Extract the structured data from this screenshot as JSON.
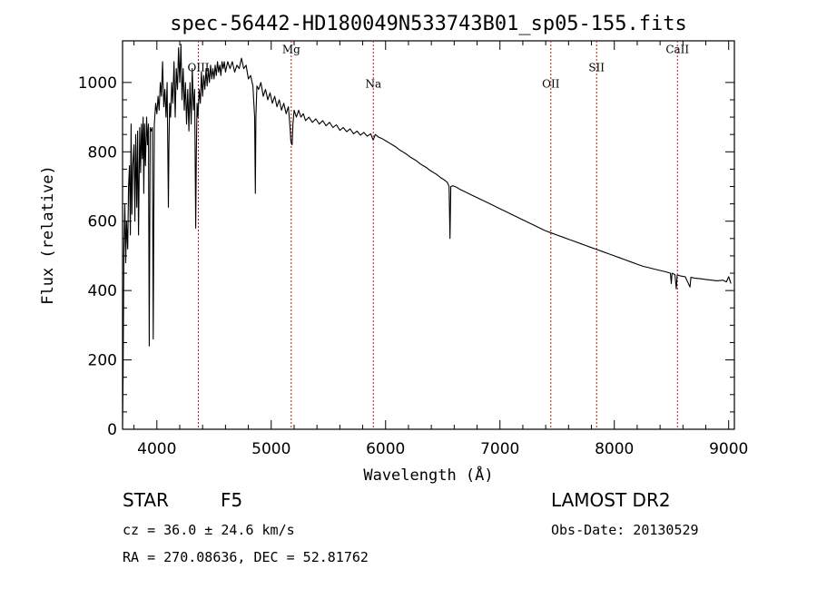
{
  "chart_data": {
    "type": "line",
    "title": "spec-56442-HD180049N533743B01_sp05-155.fits",
    "xlabel": "Wavelength (Å)",
    "ylabel": "Flux (relative)",
    "xlim": [
      3700,
      9050
    ],
    "ylim": [
      0,
      1120
    ],
    "xticks": [
      4000,
      5000,
      6000,
      7000,
      8000,
      9000
    ],
    "yticks": [
      0,
      200,
      400,
      600,
      800,
      1000
    ],
    "lines": [
      {
        "label": "OIII",
        "wavelength": 4363,
        "label_flux": 1032
      },
      {
        "label": "Mg",
        "wavelength": 5175,
        "label_flux": 1085
      },
      {
        "label": "Na",
        "wavelength": 5893,
        "label_flux": 985
      },
      {
        "label": "OII",
        "wavelength": 7445,
        "label_flux": 985
      },
      {
        "label": "SII",
        "wavelength": 7845,
        "label_flux": 1032
      },
      {
        "label": "CaII",
        "wavelength": 8552,
        "label_flux": 1085
      }
    ],
    "line_color": "#b01818",
    "series": [
      {
        "name": "spectrum",
        "color": "#000000",
        "points": [
          [
            3700,
            10
          ],
          [
            3705,
            150
          ],
          [
            3712,
            520
          ],
          [
            3720,
            650
          ],
          [
            3728,
            480
          ],
          [
            3735,
            600
          ],
          [
            3745,
            520
          ],
          [
            3752,
            700
          ],
          [
            3760,
            760
          ],
          [
            3768,
            560
          ],
          [
            3775,
            880
          ],
          [
            3782,
            620
          ],
          [
            3790,
            760
          ],
          [
            3800,
            820
          ],
          [
            3808,
            600
          ],
          [
            3815,
            850
          ],
          [
            3825,
            640
          ],
          [
            3832,
            860
          ],
          [
            3840,
            560
          ],
          [
            3850,
            870
          ],
          [
            3858,
            740
          ],
          [
            3866,
            880
          ],
          [
            3873,
            780
          ],
          [
            3880,
            900
          ],
          [
            3886,
            680
          ],
          [
            3892,
            880
          ],
          [
            3900,
            760
          ],
          [
            3910,
            900
          ],
          [
            3918,
            820
          ],
          [
            3926,
            880
          ],
          [
            3933,
            240
          ],
          [
            3938,
            600
          ],
          [
            3942,
            870
          ],
          [
            3952,
            860
          ],
          [
            3960,
            870
          ],
          [
            3968,
            260
          ],
          [
            3973,
            600
          ],
          [
            3978,
            880
          ],
          [
            3990,
            940
          ],
          [
            4000,
            910
          ],
          [
            4010,
            960
          ],
          [
            4020,
            920
          ],
          [
            4030,
            1000
          ],
          [
            4040,
            960
          ],
          [
            4050,
            1060
          ],
          [
            4060,
            930
          ],
          [
            4070,
            980
          ],
          [
            4080,
            900
          ],
          [
            4090,
            1000
          ],
          [
            4101,
            640
          ],
          [
            4106,
            820
          ],
          [
            4112,
            940
          ],
          [
            4120,
            900
          ],
          [
            4130,
            1000
          ],
          [
            4140,
            940
          ],
          [
            4150,
            1060
          ],
          [
            4160,
            900
          ],
          [
            4170,
            1040
          ],
          [
            4180,
            980
          ],
          [
            4190,
            1100
          ],
          [
            4200,
            1000
          ],
          [
            4210,
            1110
          ],
          [
            4220,
            950
          ],
          [
            4230,
            1040
          ],
          [
            4240,
            920
          ],
          [
            4250,
            1000
          ],
          [
            4260,
            880
          ],
          [
            4270,
            980
          ],
          [
            4280,
            860
          ],
          [
            4290,
            1000
          ],
          [
            4300,
            880
          ],
          [
            4310,
            1040
          ],
          [
            4320,
            920
          ],
          [
            4330,
            980
          ],
          [
            4340,
            580
          ],
          [
            4345,
            800
          ],
          [
            4352,
            940
          ],
          [
            4360,
            900
          ],
          [
            4370,
            980
          ],
          [
            4380,
            940
          ],
          [
            4390,
            1030
          ],
          [
            4400,
            960
          ],
          [
            4410,
            1020
          ],
          [
            4420,
            980
          ],
          [
            4430,
            1040
          ],
          [
            4440,
            990
          ],
          [
            4450,
            1040
          ],
          [
            4460,
            1000
          ],
          [
            4470,
            1050
          ],
          [
            4480,
            1010
          ],
          [
            4490,
            1040
          ],
          [
            4500,
            1010
          ],
          [
            4510,
            1050
          ],
          [
            4520,
            1020
          ],
          [
            4530,
            1060
          ],
          [
            4540,
            1030
          ],
          [
            4550,
            1050
          ],
          [
            4560,
            1020
          ],
          [
            4570,
            1060
          ],
          [
            4580,
            1040
          ],
          [
            4590,
            1060
          ],
          [
            4600,
            1030
          ],
          [
            4620,
            1060
          ],
          [
            4640,
            1040
          ],
          [
            4660,
            1060
          ],
          [
            4680,
            1030
          ],
          [
            4700,
            1050
          ],
          [
            4720,
            1040
          ],
          [
            4740,
            1070
          ],
          [
            4760,
            1040
          ],
          [
            4780,
            1050
          ],
          [
            4800,
            1010
          ],
          [
            4820,
            1020
          ],
          [
            4840,
            990
          ],
          [
            4855,
            900
          ],
          [
            4861,
            680
          ],
          [
            4866,
            900
          ],
          [
            4875,
            990
          ],
          [
            4890,
            980
          ],
          [
            4910,
            1000
          ],
          [
            4930,
            960
          ],
          [
            4950,
            980
          ],
          [
            4970,
            950
          ],
          [
            4990,
            970
          ],
          [
            5010,
            940
          ],
          [
            5030,
            960
          ],
          [
            5050,
            930
          ],
          [
            5070,
            950
          ],
          [
            5090,
            920
          ],
          [
            5110,
            940
          ],
          [
            5130,
            910
          ],
          [
            5150,
            930
          ],
          [
            5167,
            860
          ],
          [
            5172,
            830
          ],
          [
            5183,
            820
          ],
          [
            5190,
            880
          ],
          [
            5200,
            920
          ],
          [
            5220,
            900
          ],
          [
            5240,
            920
          ],
          [
            5260,
            900
          ],
          [
            5280,
            910
          ],
          [
            5300,
            890
          ],
          [
            5330,
            900
          ],
          [
            5360,
            885
          ],
          [
            5390,
            895
          ],
          [
            5420,
            880
          ],
          [
            5450,
            890
          ],
          [
            5480,
            875
          ],
          [
            5510,
            885
          ],
          [
            5540,
            870
          ],
          [
            5570,
            878
          ],
          [
            5600,
            862
          ],
          [
            5630,
            870
          ],
          [
            5660,
            858
          ],
          [
            5690,
            866
          ],
          [
            5720,
            852
          ],
          [
            5750,
            860
          ],
          [
            5780,
            848
          ],
          [
            5810,
            856
          ],
          [
            5840,
            845
          ],
          [
            5870,
            852
          ],
          [
            5890,
            835
          ],
          [
            5896,
            838
          ],
          [
            5910,
            850
          ],
          [
            5940,
            842
          ],
          [
            5970,
            838
          ],
          [
            6000,
            832
          ],
          [
            6030,
            826
          ],
          [
            6060,
            820
          ],
          [
            6090,
            814
          ],
          [
            6120,
            806
          ],
          [
            6150,
            800
          ],
          [
            6180,
            794
          ],
          [
            6210,
            786
          ],
          [
            6240,
            780
          ],
          [
            6270,
            774
          ],
          [
            6300,
            766
          ],
          [
            6330,
            760
          ],
          [
            6360,
            754
          ],
          [
            6390,
            746
          ],
          [
            6420,
            740
          ],
          [
            6450,
            734
          ],
          [
            6480,
            726
          ],
          [
            6510,
            720
          ],
          [
            6540,
            712
          ],
          [
            6555,
            700
          ],
          [
            6563,
            550
          ],
          [
            6570,
            700
          ],
          [
            6590,
            702
          ],
          [
            6620,
            698
          ],
          [
            6650,
            692
          ],
          [
            6700,
            684
          ],
          [
            6750,
            676
          ],
          [
            6800,
            668
          ],
          [
            6850,
            660
          ],
          [
            6900,
            652
          ],
          [
            6950,
            644
          ],
          [
            7000,
            636
          ],
          [
            7050,
            628
          ],
          [
            7100,
            620
          ],
          [
            7150,
            612
          ],
          [
            7200,
            604
          ],
          [
            7250,
            596
          ],
          [
            7300,
            588
          ],
          [
            7350,
            580
          ],
          [
            7400,
            572
          ],
          [
            7450,
            566
          ],
          [
            7500,
            560
          ],
          [
            7550,
            554
          ],
          [
            7600,
            548
          ],
          [
            7650,
            542
          ],
          [
            7700,
            536
          ],
          [
            7750,
            530
          ],
          [
            7800,
            524
          ],
          [
            7850,
            518
          ],
          [
            7900,
            512
          ],
          [
            7950,
            506
          ],
          [
            8000,
            500
          ],
          [
            8050,
            494
          ],
          [
            8100,
            488
          ],
          [
            8150,
            482
          ],
          [
            8200,
            476
          ],
          [
            8250,
            470
          ],
          [
            8300,
            466
          ],
          [
            8350,
            462
          ],
          [
            8400,
            458
          ],
          [
            8450,
            454
          ],
          [
            8490,
            450
          ],
          [
            8498,
            420
          ],
          [
            8505,
            450
          ],
          [
            8530,
            446
          ],
          [
            8542,
            405
          ],
          [
            8550,
            445
          ],
          [
            8580,
            442
          ],
          [
            8620,
            440
          ],
          [
            8662,
            410
          ],
          [
            8670,
            438
          ],
          [
            8700,
            436
          ],
          [
            8750,
            434
          ],
          [
            8800,
            432
          ],
          [
            8850,
            430
          ],
          [
            8900,
            428
          ],
          [
            8950,
            430
          ],
          [
            8980,
            425
          ],
          [
            9000,
            440
          ],
          [
            9010,
            430
          ],
          [
            9020,
            420
          ]
        ]
      }
    ]
  },
  "footer": {
    "object_class": "STAR",
    "subclass": "F5",
    "cz": "cz = 36.0 ± 24.6 km/s",
    "coords": "RA = 270.08636, DEC =  52.81762",
    "survey": "LAMOST DR2",
    "obs_date": "Obs-Date: 20130529"
  }
}
